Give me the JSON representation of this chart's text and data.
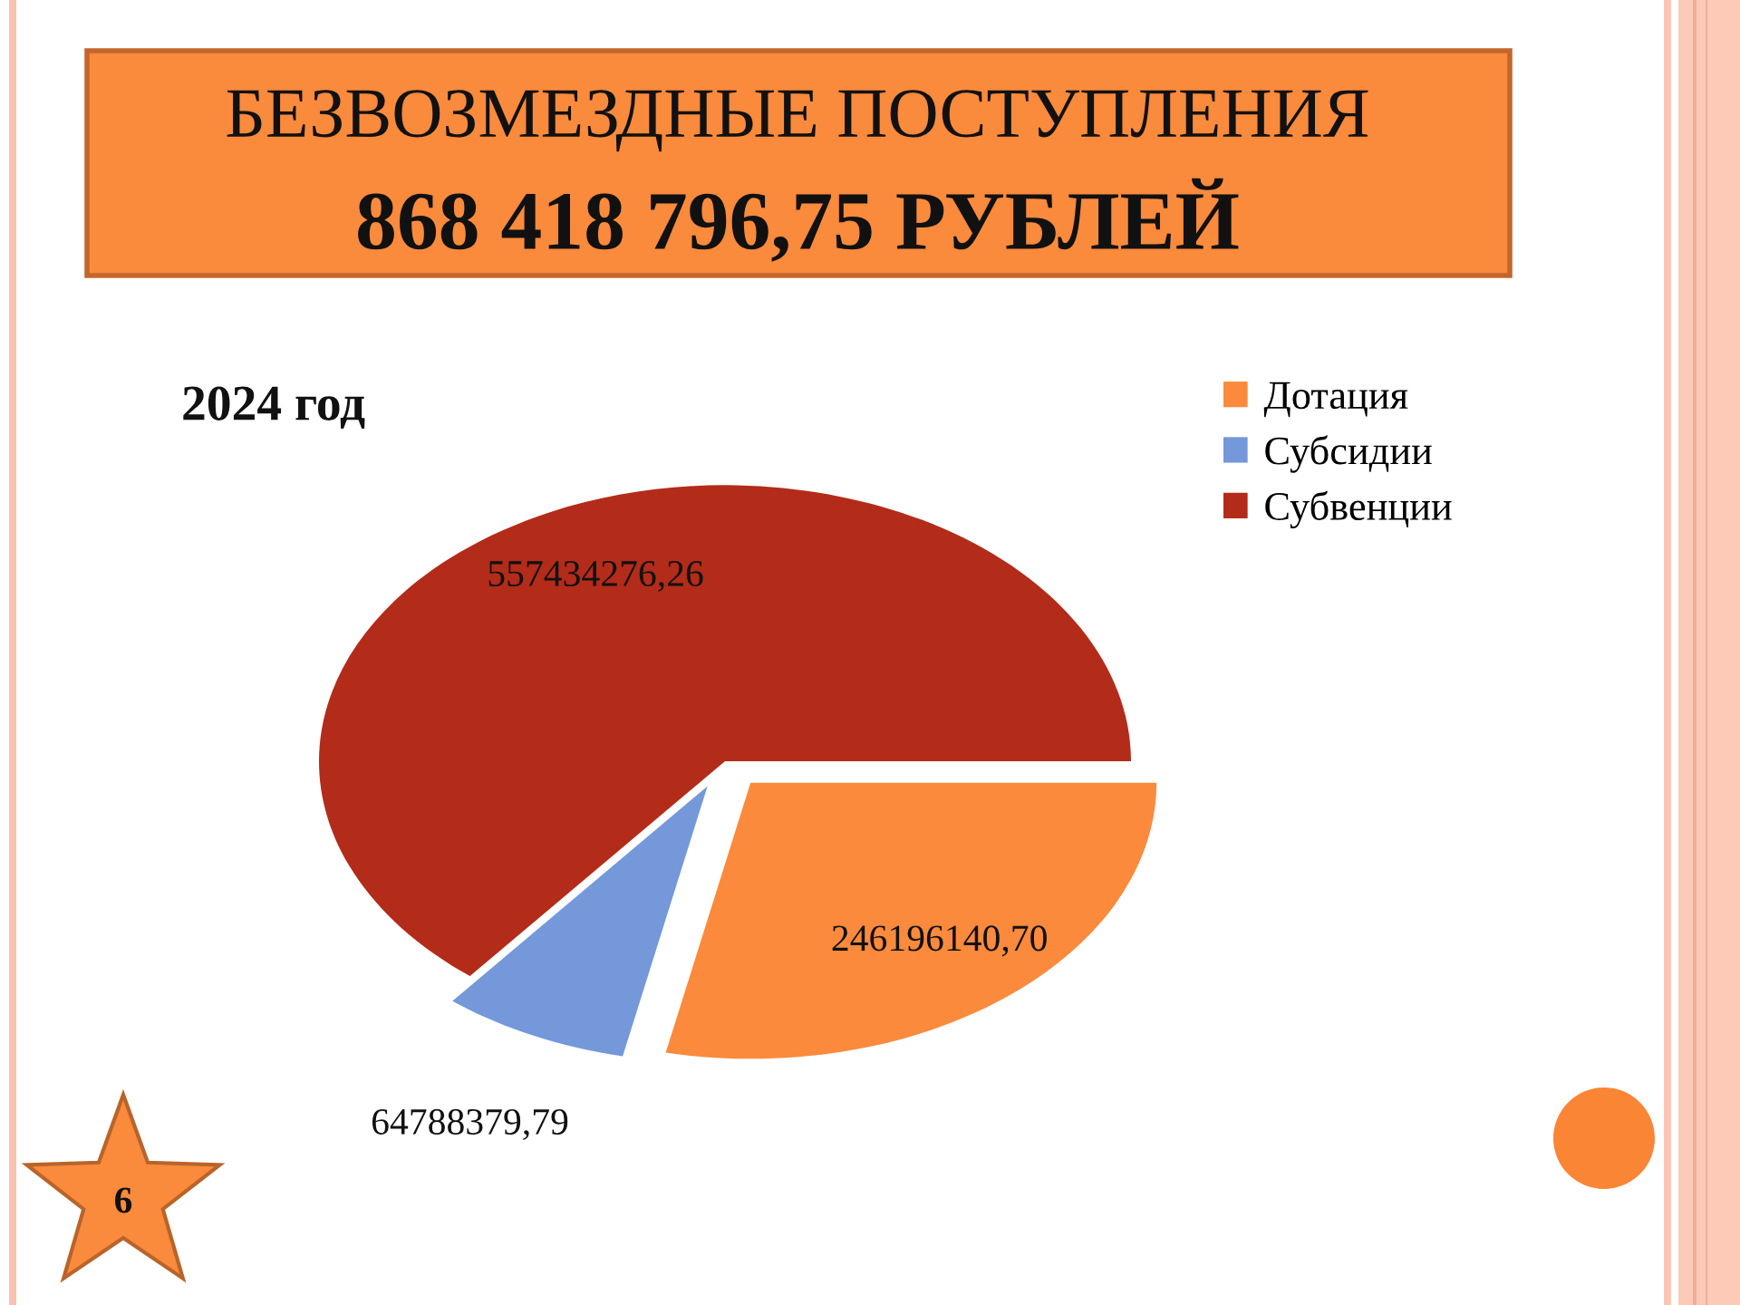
{
  "chart_data": {
    "type": "pie",
    "title": "БЕЗВОЗМЕЗДНЫЕ ПОСТУПЛЕНИЯ",
    "subtitle": "868 418 796,75 РУБЛЕЙ",
    "annotations": [
      "2024 год",
      "6"
    ],
    "categories": [
      "Дотация",
      "Субсидии",
      "Субвенции"
    ],
    "values": [
      246196140.7,
      64788379.79,
      557434276.26
    ],
    "colors": [
      "#fb8a3c",
      "#7498d9",
      "#b32b19"
    ],
    "value_labels": [
      "246196140,70",
      "64788379,79",
      "557434276,26"
    ],
    "legend": "top right"
  }
}
